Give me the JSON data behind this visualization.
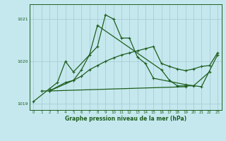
{
  "xlabel": "Graphe pression niveau de la mer (hPa)",
  "background_color": "#c5e8ee",
  "grid_color": "#aacdd6",
  "line_color": "#1e5e1e",
  "ylim": [
    1018.85,
    1021.35
  ],
  "xlim": [
    -0.5,
    23.5
  ],
  "yticks": [
    1019,
    1020,
    1021
  ],
  "xticks": [
    0,
    1,
    2,
    3,
    4,
    5,
    6,
    7,
    8,
    9,
    10,
    11,
    12,
    13,
    14,
    15,
    16,
    17,
    18,
    19,
    20,
    21,
    22,
    23
  ],
  "series1_x": [
    0,
    2,
    3,
    4,
    5,
    8,
    9,
    10,
    11,
    12,
    13,
    14,
    15,
    19,
    21,
    23
  ],
  "series1_y": [
    1019.05,
    1019.35,
    1019.5,
    1020.0,
    1019.75,
    1020.35,
    1021.1,
    1021.0,
    1020.55,
    1020.55,
    1020.1,
    1019.95,
    1019.6,
    1019.45,
    1019.4,
    1020.15
  ],
  "series2_x": [
    1,
    2,
    5,
    6,
    7,
    8,
    16,
    17,
    18,
    19,
    20,
    22
  ],
  "series2_y": [
    1019.3,
    1019.3,
    1019.55,
    1019.8,
    1020.15,
    1020.85,
    1019.8,
    1019.55,
    1019.42,
    1019.42,
    1019.42,
    1019.75
  ],
  "series3_x": [
    2,
    19
  ],
  "series3_y": [
    1019.3,
    1019.4
  ],
  "series4_x": [
    2,
    4,
    5,
    6,
    7,
    8,
    9,
    10,
    11,
    12,
    13,
    14,
    15,
    16,
    17,
    18,
    19,
    20,
    21,
    22,
    23
  ],
  "series4_y": [
    1019.3,
    1019.5,
    1019.55,
    1019.65,
    1019.8,
    1019.9,
    1020.0,
    1020.08,
    1020.15,
    1020.2,
    1020.25,
    1020.3,
    1020.35,
    1019.95,
    1019.88,
    1019.82,
    1019.78,
    1019.82,
    1019.88,
    1019.9,
    1020.2
  ]
}
